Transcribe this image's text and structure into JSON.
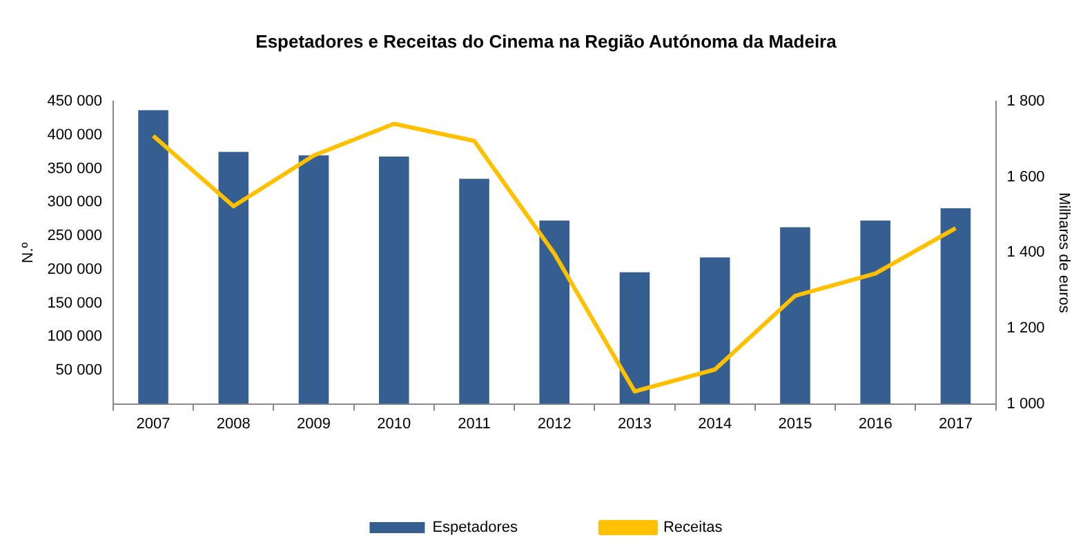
{
  "chart_data": {
    "type": "bar",
    "title": "Espetadores e Receitas do Cinema na Região Autónoma da Madeira",
    "ylabel": "N.º",
    "y2label": "Milhares de euros",
    "categories": [
      "2007",
      "2008",
      "2009",
      "2010",
      "2011",
      "2012",
      "2013",
      "2014",
      "2015",
      "2016",
      "2017"
    ],
    "series": [
      {
        "name": "Espetadores",
        "color": "#365f91",
        "values": [
          437000,
          375000,
          370000,
          368000,
          335000,
          273000,
          196000,
          218000,
          263000,
          273000,
          291000
        ]
      },
      {
        "name": "Receitas",
        "type": "line",
        "axis": "y2",
        "color": "#ffc000",
        "values": [
          1709,
          1523,
          1657,
          1741,
          1696,
          1397,
          1033,
          1091,
          1286,
          1345,
          1465
        ]
      }
    ],
    "ylim": [
      0,
      450000
    ],
    "yticks": [
      {
        "value": 0,
        "label": null
      },
      {
        "value": 50000,
        "label": "50 000"
      },
      {
        "value": 100000,
        "label": "100 000"
      },
      {
        "value": 150000,
        "label": "150 000"
      },
      {
        "value": 200000,
        "label": "200 000"
      },
      {
        "value": 250000,
        "label": "250 000"
      },
      {
        "value": 300000,
        "label": "300 000"
      },
      {
        "value": 350000,
        "label": "350 000"
      },
      {
        "value": 400000,
        "label": "400 000"
      },
      {
        "value": 450000,
        "label": "450 000"
      }
    ],
    "y2lim": [
      1000,
      1800
    ],
    "y2ticks": [
      {
        "value": 1000,
        "label": "1 000"
      },
      {
        "value": 1200,
        "label": "1 200"
      },
      {
        "value": 1400,
        "label": "1 400"
      },
      {
        "value": 1600,
        "label": "1 600"
      },
      {
        "value": 1800,
        "label": "1 800"
      }
    ],
    "grid": false,
    "legend": "bottom",
    "marker": "none"
  }
}
